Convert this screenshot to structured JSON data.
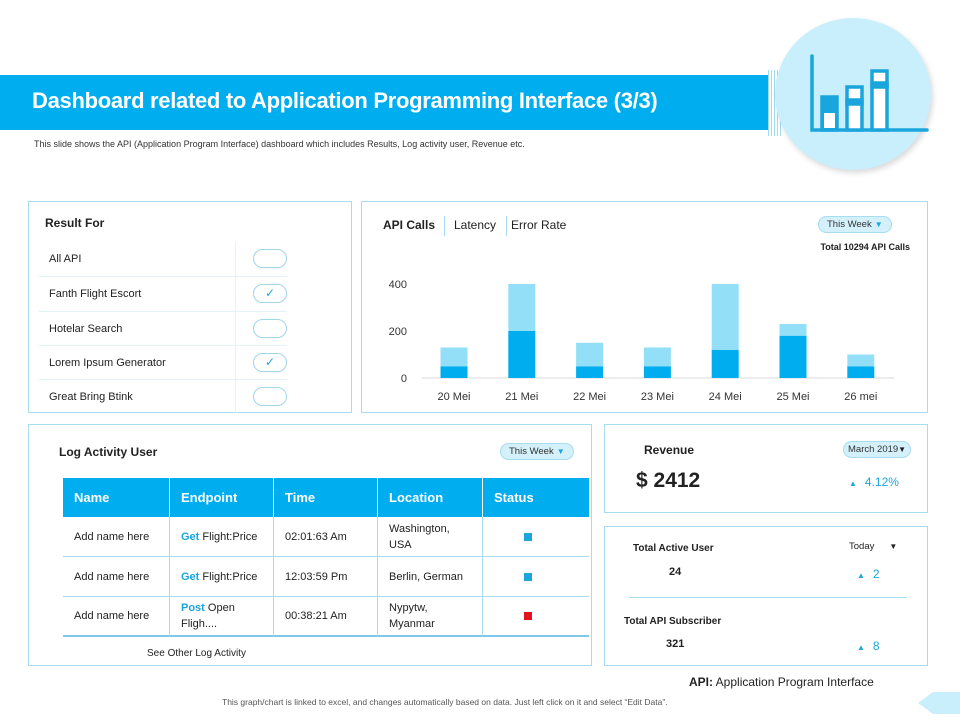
{
  "header": {
    "title": "Dashboard related to Application Programming Interface (3/3)",
    "subtitle": "This slide shows the API (Application Program Interface) dashboard which includes Results, Log activity user, Revenue etc.",
    "icon": "bar-chart-icon"
  },
  "result_for": {
    "title": "Result For",
    "items": [
      {
        "label": "All API",
        "checked": false
      },
      {
        "label": "Fanth Flight Escort",
        "checked": true
      },
      {
        "label": "Hotelar Search",
        "checked": false
      },
      {
        "label": "Lorem  Ipsum Generator",
        "checked": true
      },
      {
        "label": "Great Bring Btink",
        "checked": false
      }
    ]
  },
  "api_panel": {
    "tabs": [
      "API Calls",
      "Latency",
      "Error Rate"
    ],
    "filter": "This Week",
    "total": "Total 10294 API Calls"
  },
  "chart_data": {
    "type": "bar",
    "stacked": true,
    "categories": [
      "20 Mei",
      "21 Mei",
      "22 Mei",
      "23 Mei",
      "24 Mei",
      "25 Mei",
      "26 mei"
    ],
    "series": [
      {
        "values": [
          50,
          200,
          50,
          50,
          120,
          180,
          50
        ],
        "color": "#00aeef"
      },
      {
        "values": [
          80,
          200,
          100,
          80,
          280,
          50,
          50
        ],
        "color": "#93dff8"
      }
    ],
    "yticks": [
      0,
      200,
      400
    ],
    "ylim": [
      0,
      400
    ],
    "grid": false
  },
  "log": {
    "title": "Log Activity User",
    "filter": "This Week",
    "columns": [
      "Name",
      "Endpoint",
      "Time",
      "Location",
      "Status"
    ],
    "rows": [
      {
        "name": "Add name here",
        "method": "Get",
        "endpoint": " Flight:Price",
        "time": "02:01:63 Am",
        "location": "Washington, USA",
        "status_color": "#1aa5dd"
      },
      {
        "name": "Add name here",
        "method": "Get",
        "endpoint": " Flight:Price",
        "time": "12:03:59 Pm",
        "location": "Berlin, German",
        "status_color": "#1aa5dd"
      },
      {
        "name": "Add name here",
        "method": "Post",
        "endpoint": " Open Fligh....",
        "time": "00:38:21 Am",
        "location": "Nypytw, Myanmar",
        "status_color": "#e0141e"
      }
    ],
    "more": "See Other Log Activity",
    "header_color": "#00aeef"
  },
  "revenue": {
    "title": "Revenue",
    "filter": "March 2019",
    "value": "$ 2412",
    "change": "4.12%"
  },
  "users": {
    "filter": "Today",
    "active_label": "Total Active User",
    "active_value": "24",
    "active_change": "2",
    "sub_label": "Total API Subscriber",
    "sub_value": "321",
    "sub_change": "8"
  },
  "note": {
    "term": "API:",
    "definition": " Application Program Interface"
  },
  "footer": "This graph/chart is linked to excel, and changes automatically based on data. Just left click on it and select “Edit Data”."
}
